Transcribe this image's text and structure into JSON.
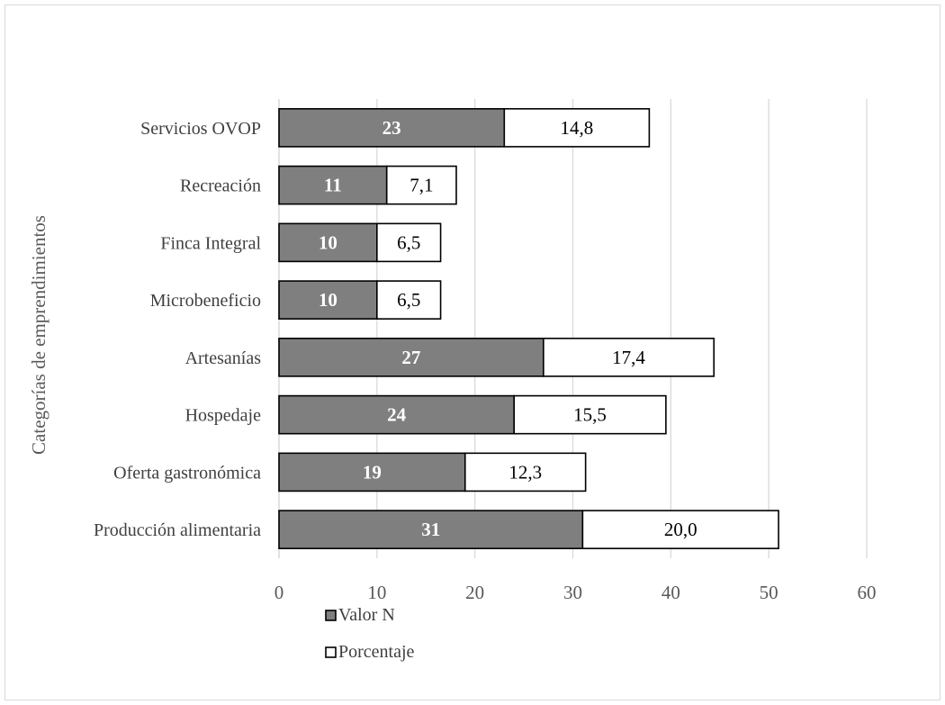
{
  "chart_data": {
    "type": "bar",
    "orientation": "horizontal",
    "stacked": true,
    "title": "",
    "xlabel": "",
    "ylabel": "Categorías de emprendimientos",
    "xlim": [
      0,
      60
    ],
    "x_ticks": [
      0,
      10,
      20,
      30,
      40,
      50,
      60
    ],
    "grid": "vertical",
    "legend_position": "bottom-left",
    "categories": [
      "Servicios OVOP",
      "Recreación",
      "Finca Integral",
      "Microbeneficio",
      "Artesanías",
      "Hospedaje",
      "Oferta gastronómica",
      "Producción alimentaria"
    ],
    "series": [
      {
        "name": "Valor N",
        "color": "#7f7f7f",
        "label_color": "#ffffff",
        "label_bold": true,
        "values": [
          23,
          11,
          10,
          10,
          27,
          24,
          19,
          31
        ],
        "labels": [
          "23",
          "11",
          "10",
          "10",
          "27",
          "24",
          "19",
          "31"
        ]
      },
      {
        "name": "Porcentaje",
        "color": "#ffffff",
        "label_color": "#000000",
        "label_bold": false,
        "values": [
          14.8,
          7.1,
          6.5,
          6.5,
          17.4,
          15.5,
          12.3,
          20.0
        ],
        "labels": [
          "14,8",
          "7,1",
          "6,5",
          "6,5",
          "17,4",
          "15,5",
          "12,3",
          "20,0"
        ]
      }
    ]
  }
}
